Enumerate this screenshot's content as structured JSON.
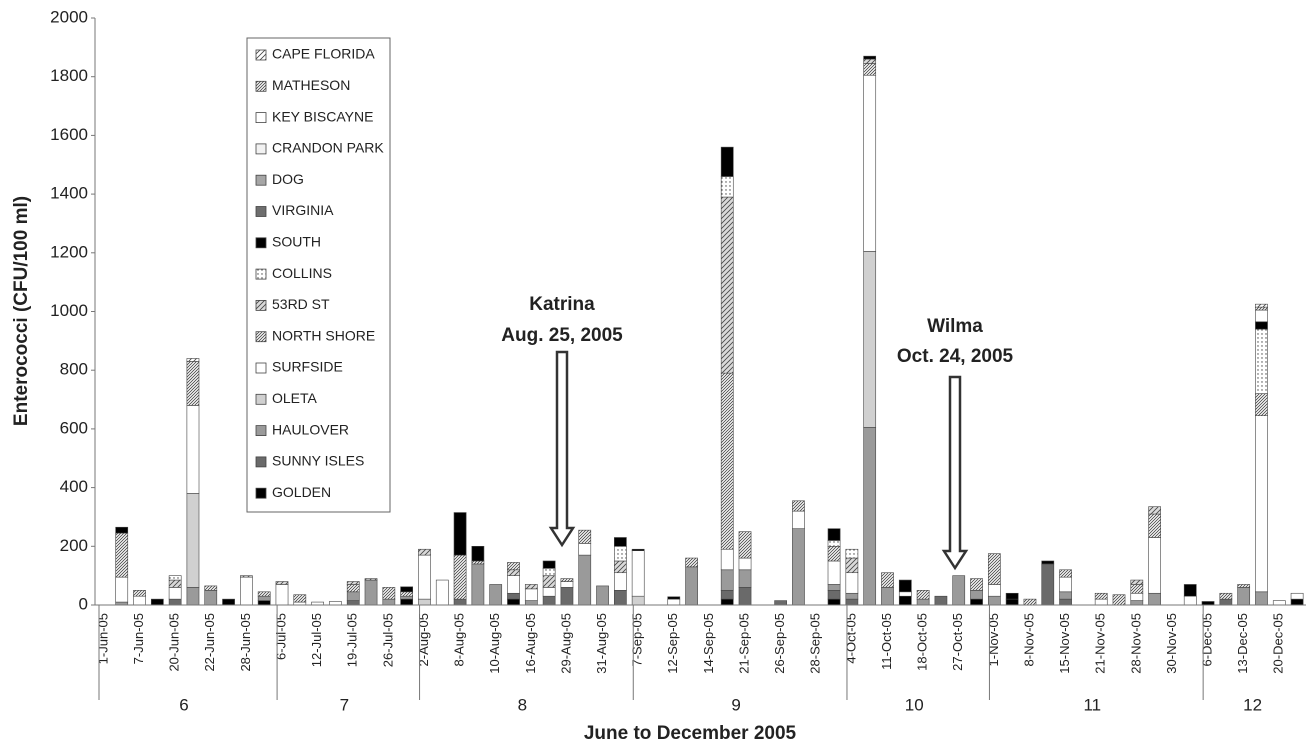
{
  "chart_data": {
    "type": "stacked-bar",
    "ylabel": "Enterococci (CFU/100 ml)",
    "xlabel": "June to December 2005",
    "ylim": [
      0,
      2000
    ],
    "yticks": [
      0,
      200,
      400,
      600,
      800,
      1000,
      1200,
      1400,
      1600,
      1800,
      2000
    ],
    "categories": [
      "1-Jun-05",
      null,
      "7-Jun-05",
      null,
      "20-Jun-05",
      null,
      "22-Jun-05",
      null,
      "28-Jun-05",
      null,
      "6-Jul-05",
      null,
      "12-Jul-05",
      null,
      "19-Jul-05",
      null,
      "26-Jul-05",
      null,
      "2-Aug-05",
      null,
      "8-Aug-05",
      null,
      "10-Aug-05",
      null,
      "16-Aug-05",
      null,
      "29-Aug-05",
      null,
      "31-Aug-05",
      null,
      "7-Sep-05",
      null,
      "12-Sep-05",
      null,
      "14-Sep-05",
      null,
      "21-Sep-05",
      null,
      "26-Sep-05",
      null,
      "28-Sep-05",
      null,
      "4-Oct-05",
      null,
      "11-Oct-05",
      null,
      "18-Oct-05",
      null,
      "27-Oct-05",
      null,
      "1-Nov-05",
      null,
      "8-Nov-05",
      null,
      "15-Nov-05",
      null,
      "21-Nov-05",
      null,
      "28-Nov-05",
      null,
      "30-Nov-05",
      null,
      "6-Dec-05",
      null,
      "13-Dec-05",
      null,
      "20-Dec-05",
      null
    ],
    "groups": [
      {
        "label": "6",
        "count": 10
      },
      {
        "label": "7",
        "count": 8
      },
      {
        "label": "8",
        "count": 12
      },
      {
        "label": "9",
        "count": 12
      },
      {
        "label": "10",
        "count": 8
      },
      {
        "label": "11",
        "count": 12
      },
      {
        "label": "12",
        "count": 6
      }
    ],
    "annotations": [
      {
        "text": "Katrina",
        "date": "Aug. 25, 2005"
      },
      {
        "text": "Wilma",
        "date": "Oct. 24, 2005"
      }
    ],
    "series": [
      {
        "name": "CAPE FLORIDA",
        "color": "#ffffff",
        "pattern": "hatch",
        "values": [
          0,
          0,
          0,
          0,
          0,
          10,
          0,
          0,
          0,
          0,
          0,
          0,
          0,
          0,
          0,
          0,
          0,
          0,
          0,
          0,
          0,
          0,
          0,
          0,
          0,
          0,
          0,
          0,
          0,
          0,
          0,
          0,
          0,
          0,
          0,
          0,
          0,
          0,
          0,
          0,
          0,
          0,
          0,
          0,
          0,
          0,
          0,
          0,
          0,
          0,
          0,
          0,
          0,
          0,
          0,
          0,
          0,
          0,
          0,
          0,
          0,
          0,
          0,
          0,
          0,
          10,
          0,
          0
        ]
      },
      {
        "name": "MATHESON",
        "color": "#ffffff",
        "pattern": "hatch-dense",
        "values": [
          0,
          0,
          0,
          0,
          0,
          0,
          0,
          0,
          0,
          0,
          0,
          0,
          0,
          0,
          0,
          0,
          0,
          0,
          0,
          0,
          0,
          0,
          0,
          25,
          0,
          0,
          0,
          0,
          0,
          0,
          0,
          0,
          0,
          0,
          0,
          0,
          0,
          0,
          0,
          0,
          0,
          0,
          0,
          0,
          0,
          0,
          0,
          0,
          0,
          0,
          0,
          0,
          0,
          0,
          0,
          0,
          0,
          0,
          0,
          0,
          0,
          0,
          0,
          0,
          0,
          10,
          0,
          0
        ]
      },
      {
        "name": "KEY BISCAYNE",
        "color": "#ffffff",
        "values": [
          0,
          0,
          0,
          0,
          0,
          0,
          0,
          0,
          0,
          0,
          0,
          0,
          0,
          0,
          0,
          0,
          0,
          0,
          0,
          0,
          0,
          0,
          0,
          0,
          0,
          0,
          0,
          0,
          0,
          0,
          0,
          0,
          0,
          0,
          0,
          0,
          0,
          0,
          0,
          0,
          0,
          0,
          0,
          0,
          0,
          0,
          0,
          0,
          0,
          0,
          0,
          0,
          0,
          0,
          0,
          0,
          0,
          0,
          0,
          0,
          0,
          0,
          0,
          0,
          0,
          40,
          0,
          0
        ]
      },
      {
        "name": "CRANDON PARK",
        "color": "#f2f2f2",
        "values": [
          0,
          0,
          0,
          0,
          0,
          0,
          0,
          0,
          0,
          0,
          0,
          0,
          0,
          0,
          0,
          0,
          0,
          0,
          0,
          0,
          0,
          0,
          0,
          0,
          0,
          0,
          0,
          0,
          0,
          0,
          0,
          0,
          0,
          0,
          0,
          0,
          0,
          0,
          0,
          0,
          0,
          0,
          0,
          0,
          0,
          0,
          0,
          0,
          0,
          0,
          0,
          0,
          0,
          0,
          0,
          0,
          0,
          0,
          0,
          0,
          0,
          0,
          0,
          0,
          0,
          0,
          0,
          0
        ]
      },
      {
        "name": "DOG",
        "color": "#a6a6a6",
        "values": [
          0,
          0,
          0,
          0,
          0,
          0,
          0,
          0,
          0,
          0,
          0,
          0,
          0,
          0,
          0,
          0,
          0,
          0,
          0,
          0,
          0,
          0,
          0,
          0,
          0,
          0,
          0,
          0,
          0,
          0,
          0,
          0,
          0,
          0,
          0,
          0,
          0,
          0,
          0,
          0,
          0,
          0,
          0,
          0,
          0,
          0,
          0,
          0,
          0,
          0,
          0,
          0,
          0,
          0,
          0,
          0,
          0,
          0,
          0,
          0,
          0,
          0,
          0,
          0,
          0,
          0,
          0,
          0
        ]
      },
      {
        "name": "VIRGINIA",
        "color": "#6e6e6e",
        "values": [
          0,
          0,
          0,
          0,
          0,
          0,
          0,
          0,
          0,
          0,
          0,
          0,
          0,
          0,
          0,
          0,
          0,
          0,
          0,
          0,
          0,
          0,
          0,
          0,
          0,
          0,
          0,
          0,
          0,
          0,
          0,
          0,
          0,
          0,
          0,
          0,
          0,
          0,
          0,
          0,
          0,
          0,
          0,
          0,
          0,
          0,
          0,
          0,
          0,
          0,
          0,
          0,
          0,
          0,
          0,
          0,
          0,
          0,
          0,
          0,
          0,
          0,
          0,
          0,
          0,
          0,
          0,
          0
        ]
      },
      {
        "name": "SOUTH",
        "color": "#000000",
        "values": [
          0,
          20,
          0,
          0,
          0,
          0,
          0,
          0,
          0,
          0,
          0,
          0,
          0,
          0,
          0,
          0,
          0,
          17,
          0,
          0,
          145,
          50,
          0,
          0,
          0,
          25,
          0,
          0,
          0,
          30,
          5,
          0,
          8,
          0,
          0,
          100,
          0,
          0,
          0,
          0,
          0,
          40,
          0,
          10,
          0,
          40,
          0,
          0,
          0,
          0,
          0,
          20,
          0,
          10,
          0,
          0,
          0,
          0,
          0,
          0,
          0,
          40,
          0,
          0,
          0,
          25,
          0,
          0
        ]
      },
      {
        "name": "COLLINS",
        "color": "#ffffff",
        "pattern": "dots",
        "values": [
          0,
          0,
          0,
          0,
          15,
          0,
          0,
          0,
          0,
          0,
          0,
          0,
          0,
          0,
          0,
          0,
          0,
          0,
          0,
          0,
          0,
          0,
          0,
          0,
          0,
          25,
          0,
          0,
          0,
          50,
          0,
          0,
          0,
          0,
          0,
          70,
          0,
          0,
          0,
          0,
          0,
          20,
          30,
          0,
          0,
          0,
          0,
          0,
          0,
          0,
          0,
          0,
          0,
          0,
          0,
          0,
          0,
          0,
          0,
          0,
          0,
          0,
          0,
          0,
          0,
          220,
          0,
          0
        ]
      },
      {
        "name": "53RD ST",
        "color": "#d9d9d9",
        "pattern": "hatch",
        "values": [
          0,
          0,
          0,
          0,
          25,
          0,
          0,
          0,
          5,
          0,
          10,
          0,
          0,
          0,
          10,
          5,
          0,
          0,
          20,
          0,
          0,
          0,
          0,
          20,
          15,
          40,
          0,
          0,
          0,
          40,
          0,
          0,
          0,
          0,
          0,
          600,
          0,
          0,
          0,
          0,
          0,
          0,
          50,
          15,
          0,
          0,
          0,
          0,
          0,
          0,
          0,
          0,
          0,
          0,
          0,
          0,
          0,
          0,
          15,
          25,
          0,
          0,
          0,
          0,
          0,
          0,
          0,
          0
        ]
      },
      {
        "name": "NORTH SHORE",
        "color": "#ffffff",
        "pattern": "hatch-dense",
        "values": [
          0,
          150,
          20,
          0,
          0,
          150,
          15,
          0,
          0,
          15,
          0,
          25,
          0,
          0,
          25,
          0,
          40,
          15,
          0,
          0,
          150,
          10,
          0,
          0,
          0,
          0,
          10,
          45,
          0,
          0,
          0,
          0,
          0,
          30,
          0,
          600,
          90,
          0,
          0,
          35,
          0,
          50,
          0,
          40,
          50,
          0,
          30,
          0,
          0,
          40,
          105,
          0,
          20,
          0,
          25,
          0,
          20,
          35,
          30,
          80,
          0,
          0,
          0,
          20,
          10,
          75,
          0,
          0
        ]
      },
      {
        "name": "SURFSIDE",
        "color": "#ffffff",
        "values": [
          0,
          85,
          30,
          0,
          40,
          300,
          0,
          0,
          95,
          0,
          70,
          10,
          10,
          12,
          0,
          0,
          0,
          0,
          150,
          85,
          0,
          0,
          0,
          60,
          40,
          30,
          20,
          40,
          0,
          60,
          155,
          0,
          20,
          0,
          0,
          70,
          40,
          0,
          0,
          60,
          0,
          80,
          70,
          600,
          0,
          15,
          0,
          0,
          0,
          0,
          40,
          0,
          0,
          0,
          50,
          0,
          20,
          0,
          25,
          190,
          0,
          30,
          0,
          0,
          0,
          600,
          15,
          20
        ]
      },
      {
        "name": "OLETA",
        "color": "#d0d0d0",
        "values": [
          0,
          0,
          0,
          0,
          0,
          320,
          0,
          0,
          0,
          0,
          0,
          0,
          0,
          0,
          0,
          0,
          0,
          0,
          20,
          0,
          0,
          0,
          0,
          0,
          0,
          0,
          0,
          0,
          0,
          0,
          30,
          0,
          0,
          0,
          0,
          0,
          0,
          0,
          0,
          0,
          0,
          0,
          0,
          600,
          0,
          0,
          0,
          0,
          0,
          0,
          0,
          0,
          0,
          0,
          0,
          0,
          0,
          0,
          0,
          0,
          0,
          0,
          0,
          0,
          0,
          0,
          0,
          0
        ]
      },
      {
        "name": "HAULOVER",
        "color": "#9a9a9a",
        "values": [
          0,
          10,
          0,
          0,
          0,
          60,
          50,
          0,
          0,
          15,
          0,
          0,
          0,
          0,
          30,
          85,
          20,
          10,
          0,
          0,
          0,
          140,
          70,
          0,
          15,
          0,
          0,
          170,
          65,
          0,
          0,
          0,
          0,
          130,
          0,
          70,
          60,
          0,
          0,
          260,
          0,
          20,
          20,
          605,
          60,
          0,
          20,
          0,
          100,
          30,
          30,
          0,
          0,
          0,
          25,
          0,
          0,
          0,
          15,
          40,
          0,
          0,
          0,
          0,
          60,
          45,
          0,
          0
        ]
      },
      {
        "name": "SUNNY ISLES",
        "color": "#6a6a6a",
        "values": [
          0,
          0,
          0,
          0,
          20,
          0,
          0,
          0,
          0,
          0,
          0,
          0,
          0,
          0,
          15,
          0,
          0,
          0,
          0,
          0,
          20,
          0,
          0,
          20,
          0,
          30,
          60,
          0,
          0,
          50,
          0,
          0,
          0,
          0,
          0,
          30,
          60,
          0,
          15,
          0,
          0,
          30,
          20,
          0,
          0,
          0,
          0,
          30,
          0,
          0,
          0,
          0,
          0,
          140,
          20,
          0,
          0,
          0,
          0,
          0,
          0,
          0,
          0,
          20,
          0,
          0,
          0,
          0
        ]
      },
      {
        "name": "GOLDEN",
        "color": "#000000",
        "values": [
          0,
          0,
          0,
          20,
          0,
          0,
          0,
          20,
          0,
          15,
          0,
          0,
          0,
          0,
          0,
          0,
          0,
          20,
          0,
          0,
          0,
          0,
          0,
          20,
          0,
          0,
          0,
          0,
          0,
          0,
          0,
          0,
          0,
          0,
          0,
          20,
          0,
          0,
          0,
          0,
          0,
          20,
          0,
          0,
          0,
          30,
          0,
          0,
          0,
          20,
          0,
          20,
          0,
          0,
          0,
          0,
          0,
          0,
          0,
          0,
          0,
          0,
          12,
          0,
          0,
          0,
          0,
          20
        ]
      }
    ]
  }
}
